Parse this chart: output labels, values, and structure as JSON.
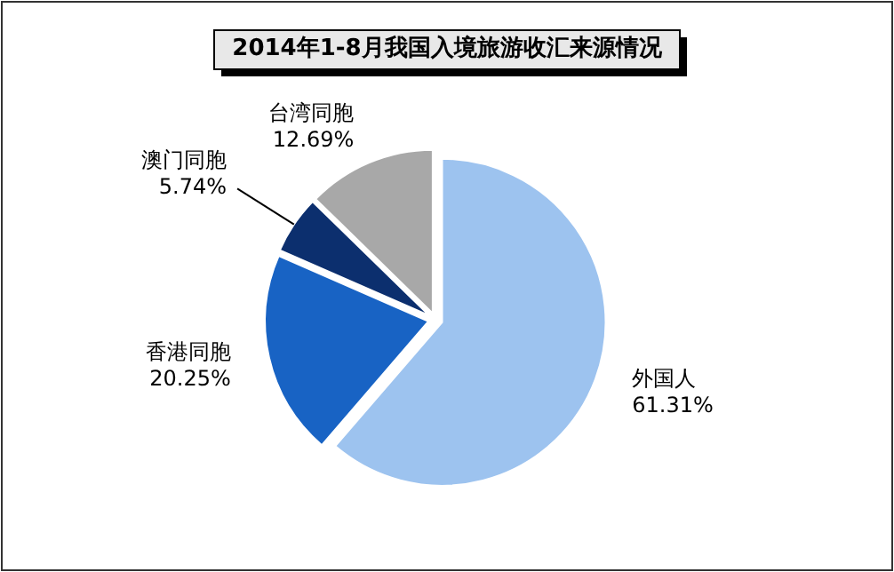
{
  "chart_data": {
    "type": "pie",
    "title": "2014年1-8月我国入境旅游收汇来源情况",
    "categories": [
      "外国人",
      "香港同胞",
      "澳门同胞",
      "台湾同胞"
    ],
    "values": [
      61.31,
      20.25,
      5.74,
      12.69
    ],
    "value_labels": [
      "61.31%",
      "20.25%",
      "5.74%",
      "12.69%"
    ],
    "colors": [
      "#9dc3ef",
      "#1863c4",
      "#0c2f6e",
      "#a8a8a8"
    ]
  }
}
